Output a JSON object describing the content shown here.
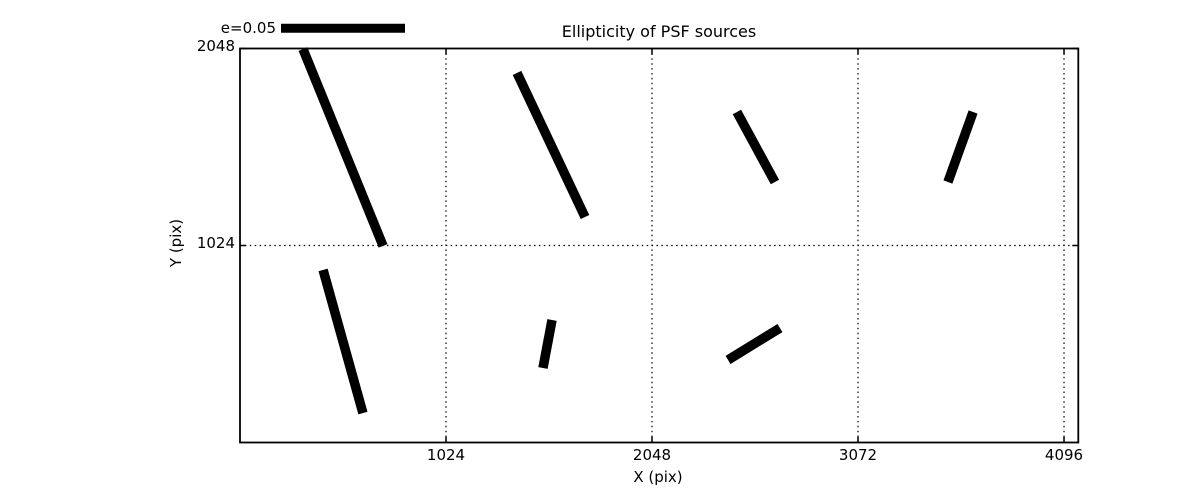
{
  "figure": {
    "background": "#ffffff",
    "ink_color": "#000000"
  },
  "chart_data": {
    "type": "line",
    "mark": "whisker-segments",
    "title": "Ellipticity of PSF sources",
    "xlabel": "X (pix)",
    "ylabel": "Y (pix)",
    "xlim": [
      0,
      4167
    ],
    "ylim": [
      0,
      2048
    ],
    "x_ticks": [
      {
        "value": 1024,
        "label": "1024"
      },
      {
        "value": 2048,
        "label": "2048"
      },
      {
        "value": 3072,
        "label": "3072"
      },
      {
        "value": 4096,
        "label": "4096"
      }
    ],
    "y_ticks": [
      {
        "value": 1024,
        "label": "1024"
      },
      {
        "value": 2048,
        "label": "2048"
      }
    ],
    "grid": {
      "style": "dotted",
      "x_gridlines": [
        1024,
        2048,
        3072,
        4096
      ],
      "y_gridlines": [
        1024
      ]
    },
    "legend": {
      "label": "e=0.05",
      "position": "top-left, above axes",
      "represents": "ellipticity scale bar"
    },
    "whiskers": [
      {
        "x1": 313,
        "y1": 2045,
        "x2": 711,
        "y2": 1022,
        "center": [
          512,
          1534
        ],
        "e": 0.086
      },
      {
        "x1": 1377,
        "y1": 1921,
        "x2": 1715,
        "y2": 1172,
        "center": [
          1546,
          1547
        ],
        "e": 0.064
      },
      {
        "x1": 2470,
        "y1": 1718,
        "x2": 2659,
        "y2": 1354,
        "center": [
          2565,
          1536
        ],
        "e": 0.032
      },
      {
        "x1": 3644,
        "y1": 1718,
        "x2": 3519,
        "y2": 1354,
        "center": [
          3582,
          1536
        ],
        "e": 0.03
      },
      {
        "x1": 413,
        "y1": 897,
        "x2": 611,
        "y2": 153,
        "center": [
          512,
          525
        ],
        "e": 0.06
      },
      {
        "x1": 1551,
        "y1": 637,
        "x2": 1506,
        "y2": 387,
        "center": [
          1529,
          512
        ],
        "e": 0.02
      },
      {
        "x1": 2426,
        "y1": 429,
        "x2": 2684,
        "y2": 595,
        "center": [
          2555,
          512
        ],
        "e": 0.025
      }
    ]
  }
}
